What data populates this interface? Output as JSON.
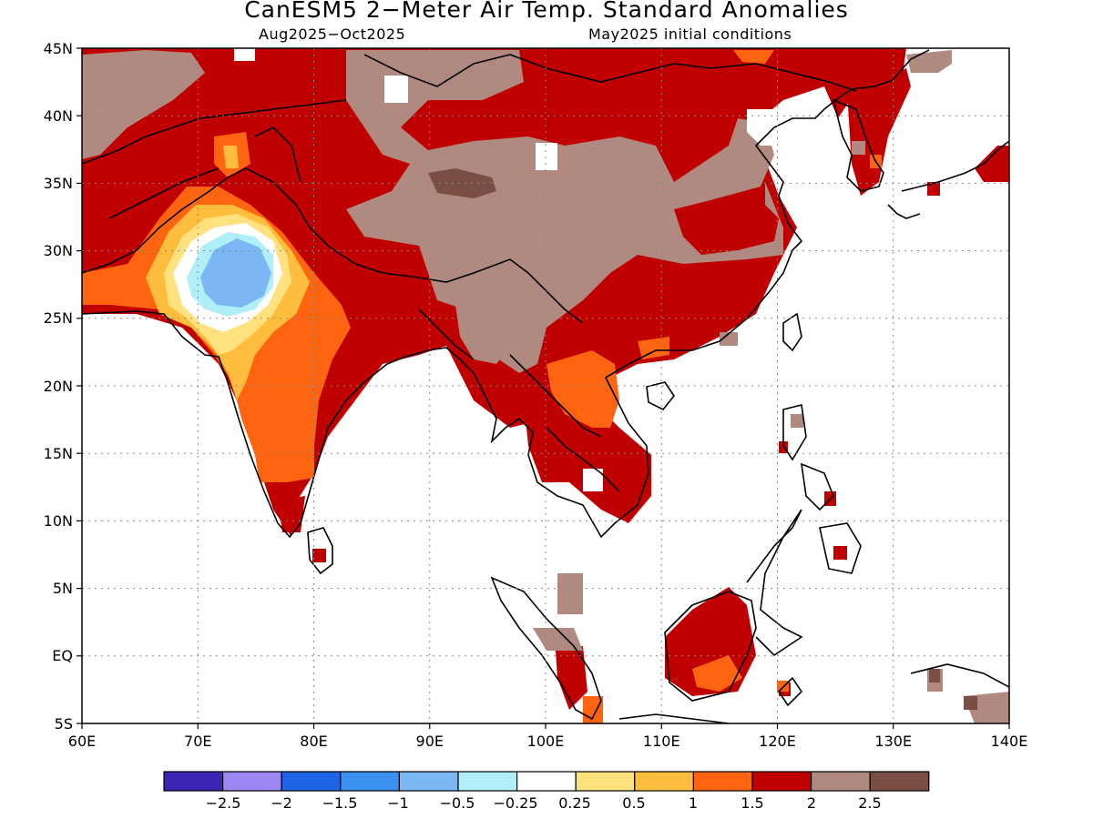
{
  "title": "CanESM5 2−Meter Air Temp. Standard Anomalies",
  "subtitle_left": "Aug2025−Oct2025",
  "subtitle_right": "May2025 initial conditions",
  "lat_labels": [
    "45N",
    "40N",
    "35N",
    "30N",
    "25N",
    "20N",
    "15N",
    "10N",
    "5N",
    "EQ",
    "5S"
  ],
  "lon_labels": [
    "60E",
    "70E",
    "80E",
    "90E",
    "100E",
    "110E",
    "120E",
    "130E",
    "140E"
  ],
  "colorbar": {
    "colors": [
      "#3a25b4",
      "#9b86f2",
      "#1f64e4",
      "#3c91f0",
      "#7bb6f5",
      "#b0eef8",
      "#ffffff",
      "#ffe27d",
      "#ffbd3d",
      "#ff6410",
      "#c00000",
      "#b08a80",
      "#7a4e44"
    ],
    "labels": [
      "−2.5",
      "−2",
      "−1.5",
      "−1",
      "−0.5",
      "−0.25",
      "0.25",
      "0.5",
      "1",
      "1.5",
      "2",
      "2.5"
    ]
  }
}
